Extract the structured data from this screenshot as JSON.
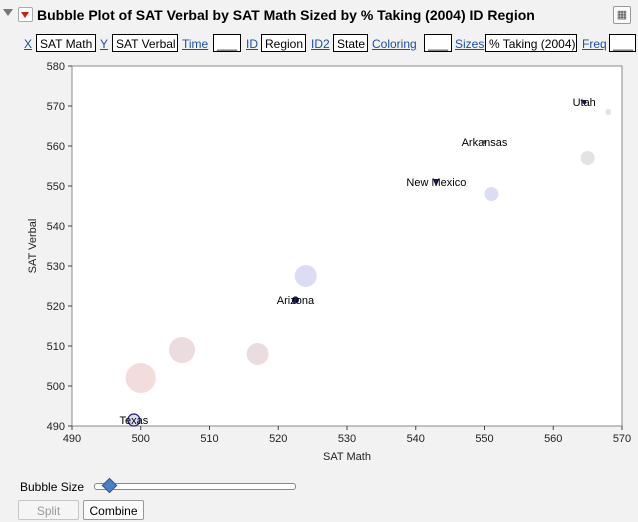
{
  "header": {
    "title": "Bubble Plot of SAT Verbal by SAT Math Sized by % Taking (2004) ID Region"
  },
  "roles": {
    "x": {
      "label": "X",
      "value": "SAT Math"
    },
    "y": {
      "label": "Y",
      "value": "SAT Verbal"
    },
    "time": {
      "label": "Time",
      "value": "___"
    },
    "id": {
      "label": "ID",
      "value": "Region"
    },
    "id2": {
      "label": "ID2",
      "value": "State"
    },
    "coloring": {
      "label": "Coloring",
      "value": "___"
    },
    "sizes": {
      "label": "Sizes",
      "value": "% Taking (2004)"
    },
    "freq": {
      "label": "Freq",
      "value": "___"
    }
  },
  "controls": {
    "bubble_size_label": "Bubble Size",
    "bubble_size_value": 0.07,
    "split_label": "Split",
    "combine_label": "Combine"
  },
  "colors": {
    "plot_bg": "#ffffff",
    "frame": "#888888",
    "blue_bubble": "#dcdcf5",
    "pink_bubble": "#f2dcdc",
    "mauve_bubble": "#eadcdf",
    "gray_bubble": "#e3e3e3",
    "dark_point": "#1a1a60"
  },
  "chart_data": {
    "type": "scatter",
    "xlabel": "SAT Math",
    "ylabel": "SAT Verbal",
    "xlim": [
      490,
      570
    ],
    "ylim": [
      490,
      580
    ],
    "xticks": [
      490,
      500,
      510,
      520,
      530,
      540,
      550,
      560,
      570
    ],
    "yticks": [
      490,
      500,
      510,
      520,
      530,
      540,
      550,
      560,
      570,
      580
    ],
    "points": [
      {
        "x": 499,
        "y": 491.5,
        "size": 6,
        "color": "#dcdcf5",
        "label": "Texas",
        "marker": "ring"
      },
      {
        "x": 500,
        "y": 502,
        "size": 15,
        "color": "#f2dcdc",
        "label": "",
        "marker": "bubble"
      },
      {
        "x": 506,
        "y": 509,
        "size": 13,
        "color": "#eadcdf",
        "label": "",
        "marker": "bubble"
      },
      {
        "x": 517,
        "y": 508,
        "size": 11,
        "color": "#eadcdf",
        "label": "",
        "marker": "bubble"
      },
      {
        "x": 522.5,
        "y": 521.5,
        "size": 3,
        "color": "#1a1a60",
        "label": "Arizona",
        "marker": "ring"
      },
      {
        "x": 524,
        "y": 527.5,
        "size": 11,
        "color": "#dcdcf5",
        "label": "",
        "marker": "bubble"
      },
      {
        "x": 543,
        "y": 551,
        "size": 3,
        "color": "#1a1a60",
        "label": "New Mexico",
        "marker": "tri"
      },
      {
        "x": 550,
        "y": 561,
        "size": 2,
        "color": "#777777",
        "label": "Arkansas",
        "marker": "dot"
      },
      {
        "x": 551,
        "y": 548,
        "size": 7,
        "color": "#dcdcf5",
        "label": "",
        "marker": "bubble"
      },
      {
        "x": 564.5,
        "y": 571,
        "size": 2,
        "color": "#1a1a60",
        "label": "Utah",
        "marker": "dot"
      },
      {
        "x": 565,
        "y": 557,
        "size": 7,
        "color": "#e3e3e3",
        "label": "",
        "marker": "bubble"
      },
      {
        "x": 568,
        "y": 568.5,
        "size": 3,
        "color": "#e3e3e3",
        "label": "",
        "marker": "bubble"
      }
    ]
  }
}
